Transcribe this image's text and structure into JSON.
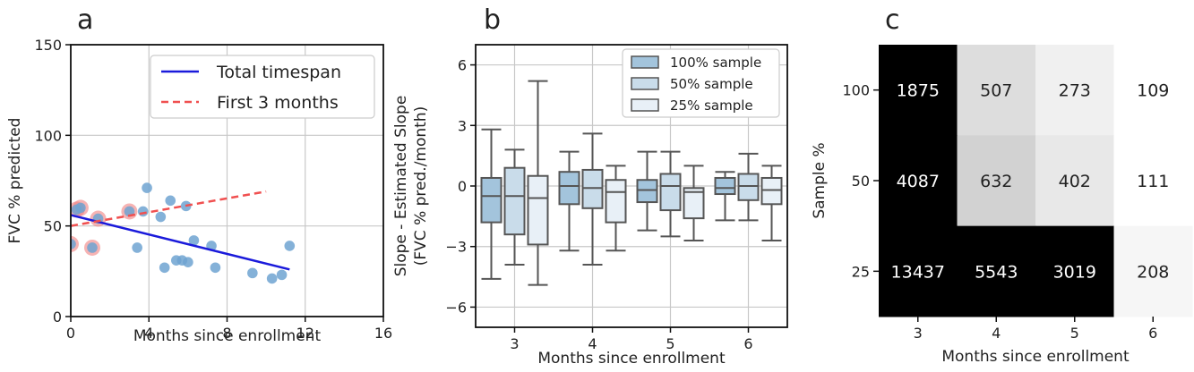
{
  "panel_labels": [
    "a",
    "b",
    "c"
  ],
  "chart_data": [
    {
      "type": "scatter",
      "panel": "a",
      "xlabel": "Months since enrollment",
      "ylabel": "FVC % predicted",
      "xlim": [
        0,
        16
      ],
      "ylim": [
        0,
        150
      ],
      "xticks": [
        0,
        4,
        8,
        12,
        16
      ],
      "yticks": [
        0,
        50,
        100,
        150
      ],
      "grid": true,
      "legend_position": "top-right",
      "points": [
        {
          "x": 0.0,
          "y": 40,
          "highlight": true
        },
        {
          "x": 0.3,
          "y": 59,
          "highlight": true
        },
        {
          "x": 0.5,
          "y": 60,
          "highlight": true
        },
        {
          "x": 1.1,
          "y": 38,
          "highlight": true
        },
        {
          "x": 1.4,
          "y": 54,
          "highlight": true
        },
        {
          "x": 3.0,
          "y": 58,
          "highlight": true
        },
        {
          "x": 3.4,
          "y": 38,
          "highlight": false
        },
        {
          "x": 3.7,
          "y": 58,
          "highlight": false
        },
        {
          "x": 3.9,
          "y": 71,
          "highlight": false
        },
        {
          "x": 4.6,
          "y": 55,
          "highlight": false
        },
        {
          "x": 4.8,
          "y": 27,
          "highlight": false
        },
        {
          "x": 5.1,
          "y": 64,
          "highlight": false
        },
        {
          "x": 5.4,
          "y": 31,
          "highlight": false
        },
        {
          "x": 5.7,
          "y": 31,
          "highlight": false
        },
        {
          "x": 5.9,
          "y": 61,
          "highlight": false
        },
        {
          "x": 6.0,
          "y": 30,
          "highlight": false
        },
        {
          "x": 6.3,
          "y": 42,
          "highlight": false
        },
        {
          "x": 7.2,
          "y": 39,
          "highlight": false
        },
        {
          "x": 7.4,
          "y": 27,
          "highlight": false
        },
        {
          "x": 9.3,
          "y": 24,
          "highlight": false
        },
        {
          "x": 10.3,
          "y": 21,
          "highlight": false
        },
        {
          "x": 10.8,
          "y": 23,
          "highlight": false
        },
        {
          "x": 11.2,
          "y": 39,
          "highlight": false
        }
      ],
      "lines": [
        {
          "name": "Total timespan",
          "style": "solid",
          "color": "#1a1adb",
          "x": [
            0,
            11.2
          ],
          "y": [
            56,
            26
          ]
        },
        {
          "name": "First 3 months",
          "style": "dashed",
          "color": "#f05050",
          "x": [
            0,
            10
          ],
          "y": [
            50,
            69
          ]
        }
      ],
      "point_color": "#6fa3d1",
      "highlight_color": "#f08080"
    },
    {
      "type": "box",
      "panel": "b",
      "xlabel": "Months since enrollment",
      "ylabel": "Slope - Estimated Slope\n(FVC % pred./month)",
      "ylabel_lines": [
        "Slope - Estimated Slope",
        "(FVC % pred./month)"
      ],
      "categories": [
        "3",
        "4",
        "5",
        "6"
      ],
      "ylim": [
        -7,
        7
      ],
      "yticks": [
        -6,
        -3,
        0,
        3,
        6
      ],
      "grid": true,
      "legend_position": "top-right",
      "series": [
        {
          "name": "100% sample",
          "color": "#a3c4dc",
          "boxes": [
            {
              "whislo": -4.6,
              "q1": -1.8,
              "med": -0.5,
              "q3": 0.4,
              "whishi": 2.8
            },
            {
              "whislo": -3.2,
              "q1": -0.9,
              "med": 0.0,
              "q3": 0.7,
              "whishi": 1.7
            },
            {
              "whislo": -2.2,
              "q1": -0.8,
              "med": -0.2,
              "q3": 0.3,
              "whishi": 1.7
            },
            {
              "whislo": -1.7,
              "q1": -0.4,
              "med": -0.1,
              "q3": 0.4,
              "whishi": 0.7
            }
          ]
        },
        {
          "name": "50% sample",
          "color": "#c9dcea",
          "boxes": [
            {
              "whislo": -3.9,
              "q1": -2.4,
              "med": -0.5,
              "q3": 0.9,
              "whishi": 1.8
            },
            {
              "whislo": -3.9,
              "q1": -1.1,
              "med": -0.1,
              "q3": 0.8,
              "whishi": 2.6
            },
            {
              "whislo": -2.5,
              "q1": -1.2,
              "med": 0.0,
              "q3": 0.6,
              "whishi": 1.7
            },
            {
              "whislo": -1.7,
              "q1": -0.7,
              "med": 0.0,
              "q3": 0.6,
              "whishi": 1.6
            }
          ]
        },
        {
          "name": "25% sample",
          "color": "#e8f0f7",
          "boxes": [
            {
              "whislo": -4.9,
              "q1": -2.9,
              "med": -0.6,
              "q3": 0.5,
              "whishi": 5.2
            },
            {
              "whislo": -3.2,
              "q1": -1.8,
              "med": -0.3,
              "q3": 0.3,
              "whishi": 1.0
            },
            {
              "whislo": -2.7,
              "q1": -1.6,
              "med": -0.3,
              "q3": -0.1,
              "whishi": 1.0
            },
            {
              "whislo": -2.7,
              "q1": -0.9,
              "med": -0.2,
              "q3": 0.4,
              "whishi": 1.0
            }
          ]
        }
      ]
    },
    {
      "type": "heatmap",
      "panel": "c",
      "xlabel": "Months since enrollment",
      "ylabel": "Sample %",
      "x_categories": [
        "3",
        "4",
        "5",
        "6"
      ],
      "y_categories": [
        "100",
        "50",
        "25"
      ],
      "values": [
        [
          1875,
          507,
          273,
          109
        ],
        [
          4087,
          632,
          402,
          111
        ],
        [
          13437,
          5543,
          3019,
          208
        ]
      ],
      "cell_gray": [
        [
          0,
          221,
          240,
          255
        ],
        [
          0,
          210,
          232,
          255
        ],
        [
          0,
          0,
          0,
          246
        ]
      ]
    }
  ]
}
